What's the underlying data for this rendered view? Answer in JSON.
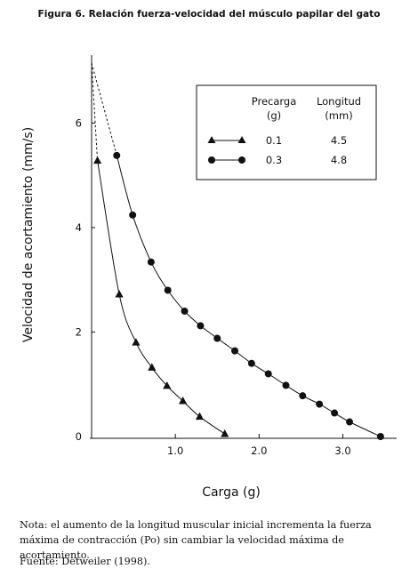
{
  "chart_data": {
    "type": "line",
    "title": "Figura 6. Relación fuerza-velocidad del músculo papilar del gato",
    "xlabel": "Carga (g)",
    "ylabel": "Velocidad de acortamiento (mm/s)",
    "xlim": [
      0,
      3.6
    ],
    "ylim": [
      0,
      7.3
    ],
    "x_ticks": [
      {
        "value": 1.0,
        "label": "1.0"
      },
      {
        "value": 2.0,
        "label": "2.0"
      },
      {
        "value": 3.0,
        "label": "3.0"
      }
    ],
    "y_ticks": [
      {
        "value": 0,
        "label": "0"
      },
      {
        "value": 2,
        "label": "2"
      },
      {
        "value": 4,
        "label": "4"
      },
      {
        "value": 6,
        "label": "6"
      }
    ],
    "grid": false,
    "legend": {
      "position": "top-right",
      "header": {
        "col1": [
          "Precarga",
          "(g)"
        ],
        "col2": [
          "Longitud",
          "(mm)"
        ]
      },
      "rows": [
        {
          "precarga": "0.1",
          "longitud": "4.5",
          "marker": "triangle"
        },
        {
          "precarga": "0.3",
          "longitud": "4.8",
          "marker": "circle"
        }
      ]
    },
    "vmax_extrapolated": 7.15,
    "series": [
      {
        "marker": "triangle",
        "points": [
          [
            0.07,
            5.28
          ],
          [
            0.33,
            2.72
          ],
          [
            0.53,
            1.8
          ],
          [
            0.72,
            1.32
          ],
          [
            0.9,
            0.97
          ],
          [
            1.09,
            0.68
          ],
          [
            1.29,
            0.38
          ],
          [
            1.59,
            0.05
          ]
        ]
      },
      {
        "marker": "circle",
        "points": [
          [
            0.3,
            5.38
          ],
          [
            0.49,
            4.24
          ],
          [
            0.71,
            3.34
          ],
          [
            0.91,
            2.8
          ],
          [
            1.11,
            2.4
          ],
          [
            1.3,
            2.12
          ],
          [
            1.5,
            1.88
          ],
          [
            1.71,
            1.64
          ],
          [
            1.91,
            1.4
          ],
          [
            2.11,
            1.2
          ],
          [
            2.32,
            0.98
          ],
          [
            2.52,
            0.78
          ],
          [
            2.72,
            0.62
          ],
          [
            2.9,
            0.45
          ],
          [
            3.08,
            0.28
          ],
          [
            3.45,
            0.0
          ]
        ]
      }
    ]
  },
  "note": "Nota: el aumento de la longitud muscular inicial incrementa la fuerza máxima de contracción (Po) sin cambiar la velocidad máxima de acortamiento.",
  "source": "Fuente: Detweiler (1998)."
}
